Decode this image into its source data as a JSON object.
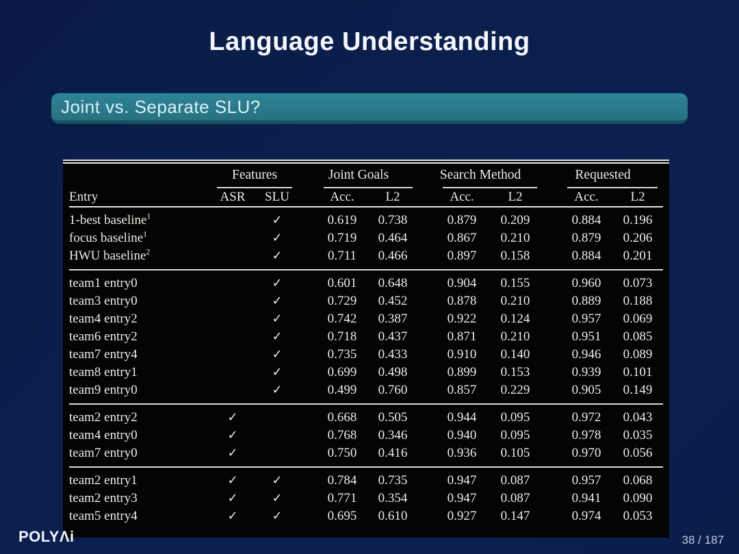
{
  "slide": {
    "title": "Language Understanding",
    "subtitle": "Joint vs. Separate SLU?",
    "logo_text": "POLYΛi",
    "page_indicator": "38 / 187"
  },
  "colors": {
    "background": "#0a1e4c",
    "subtitle_box": "#2a7e8f",
    "subtitle_box_border": "#17505e",
    "table_background": "#040404",
    "table_text": "#efece6",
    "title_text": "#f5f7fc",
    "page_number_text": "#c3cde4"
  },
  "table": {
    "check_glyph": "✓",
    "entry_header": "Entry",
    "groups": [
      "Features",
      "Joint Goals",
      "Search Method",
      "Requested"
    ],
    "sub_headers": [
      "ASR",
      "SLU",
      "Acc.",
      "L2",
      "Acc.",
      "L2",
      "Acc.",
      "L2"
    ],
    "blocks": [
      {
        "rows": [
          {
            "entry": "1-best baseline",
            "sup": "1",
            "asr": false,
            "slu": true,
            "vals": [
              "0.619",
              "0.738",
              "0.879",
              "0.209",
              "0.884",
              "0.196"
            ],
            "bold": [
              0,
              0,
              0,
              0,
              0,
              0
            ]
          },
          {
            "entry": "focus baseline",
            "sup": "1",
            "asr": false,
            "slu": true,
            "vals": [
              "0.719",
              "0.464",
              "0.867",
              "0.210",
              "0.879",
              "0.206"
            ],
            "bold": [
              0,
              0,
              0,
              0,
              0,
              0
            ]
          },
          {
            "entry": "HWU baseline",
            "sup": "2",
            "asr": false,
            "slu": true,
            "vals": [
              "0.711",
              "0.466",
              "0.897",
              "0.158",
              "0.884",
              "0.201"
            ],
            "bold": [
              0,
              0,
              0,
              0,
              0,
              0
            ]
          }
        ]
      },
      {
        "rows": [
          {
            "entry": "team1 entry0",
            "sup": "",
            "asr": false,
            "slu": true,
            "vals": [
              "0.601",
              "0.648",
              "0.904",
              "0.155",
              "0.960",
              "0.073"
            ],
            "bold": [
              0,
              0,
              0,
              0,
              0,
              0
            ]
          },
          {
            "entry": "team3 entry0",
            "sup": "",
            "asr": false,
            "slu": true,
            "vals": [
              "0.729",
              "0.452",
              "0.878",
              "0.210",
              "0.889",
              "0.188"
            ],
            "bold": [
              0,
              0,
              0,
              0,
              0,
              0
            ]
          },
          {
            "entry": "team4 entry2",
            "sup": "",
            "asr": false,
            "slu": true,
            "vals": [
              "0.742",
              "0.387",
              "0.922",
              "0.124",
              "0.957",
              "0.069"
            ],
            "bold": [
              1,
              1,
              1,
              1,
              1,
              1
            ]
          },
          {
            "entry": "team6 entry2",
            "sup": "",
            "asr": false,
            "slu": true,
            "vals": [
              "0.718",
              "0.437",
              "0.871",
              "0.210",
              "0.951",
              "0.085"
            ],
            "bold": [
              0,
              0,
              0,
              0,
              0,
              0
            ]
          },
          {
            "entry": "team7 entry4",
            "sup": "",
            "asr": false,
            "slu": true,
            "vals": [
              "0.735",
              "0.433",
              "0.910",
              "0.140",
              "0.946",
              "0.089"
            ],
            "bold": [
              0,
              0,
              0,
              0,
              0,
              0
            ]
          },
          {
            "entry": "team8 entry1",
            "sup": "",
            "asr": false,
            "slu": true,
            "vals": [
              "0.699",
              "0.498",
              "0.899",
              "0.153",
              "0.939",
              "0.101"
            ],
            "bold": [
              0,
              0,
              0,
              0,
              0,
              0
            ]
          },
          {
            "entry": "team9 entry0",
            "sup": "",
            "asr": false,
            "slu": true,
            "vals": [
              "0.499",
              "0.760",
              "0.857",
              "0.229",
              "0.905",
              "0.149"
            ],
            "bold": [
              0,
              0,
              0,
              0,
              0,
              0
            ]
          }
        ]
      },
      {
        "rows": [
          {
            "entry": "team2 entry2",
            "sup": "",
            "asr": true,
            "slu": false,
            "vals": [
              "0.668",
              "0.505",
              "0.944",
              "0.095",
              "0.972",
              "0.043"
            ],
            "bold": [
              0,
              0,
              1,
              0,
              0,
              0
            ]
          },
          {
            "entry": "team4 entry0",
            "sup": "",
            "asr": true,
            "slu": false,
            "vals": [
              "0.768",
              "0.346",
              "0.940",
              "0.095",
              "0.978",
              "0.035"
            ],
            "bold": [
              1,
              1,
              0,
              1,
              1,
              1
            ]
          },
          {
            "entry": "team7 entry0",
            "sup": "",
            "asr": true,
            "slu": false,
            "vals": [
              "0.750",
              "0.416",
              "0.936",
              "0.105",
              "0.970",
              "0.056"
            ],
            "bold": [
              0,
              0,
              0,
              0,
              0,
              0
            ]
          }
        ]
      },
      {
        "rows": [
          {
            "entry": "team2 entry1",
            "sup": "",
            "asr": true,
            "slu": true,
            "vals": [
              "0.784",
              "0.735",
              "0.947",
              "0.087",
              "0.957",
              "0.068"
            ],
            "bold": [
              1,
              0,
              1,
              1,
              0,
              0
            ]
          },
          {
            "entry": "team2 entry3",
            "sup": "",
            "asr": true,
            "slu": true,
            "vals": [
              "0.771",
              "0.354",
              "0.947",
              "0.087",
              "0.941",
              "0.090"
            ],
            "bold": [
              0,
              1,
              0,
              0,
              0,
              0
            ]
          },
          {
            "entry": "team5 entry4",
            "sup": "",
            "asr": true,
            "slu": true,
            "vals": [
              "0.695",
              "0.610",
              "0.927",
              "0.147",
              "0.974",
              "0.053"
            ],
            "bold": [
              0,
              0,
              0,
              0,
              1,
              1
            ]
          }
        ]
      }
    ]
  }
}
